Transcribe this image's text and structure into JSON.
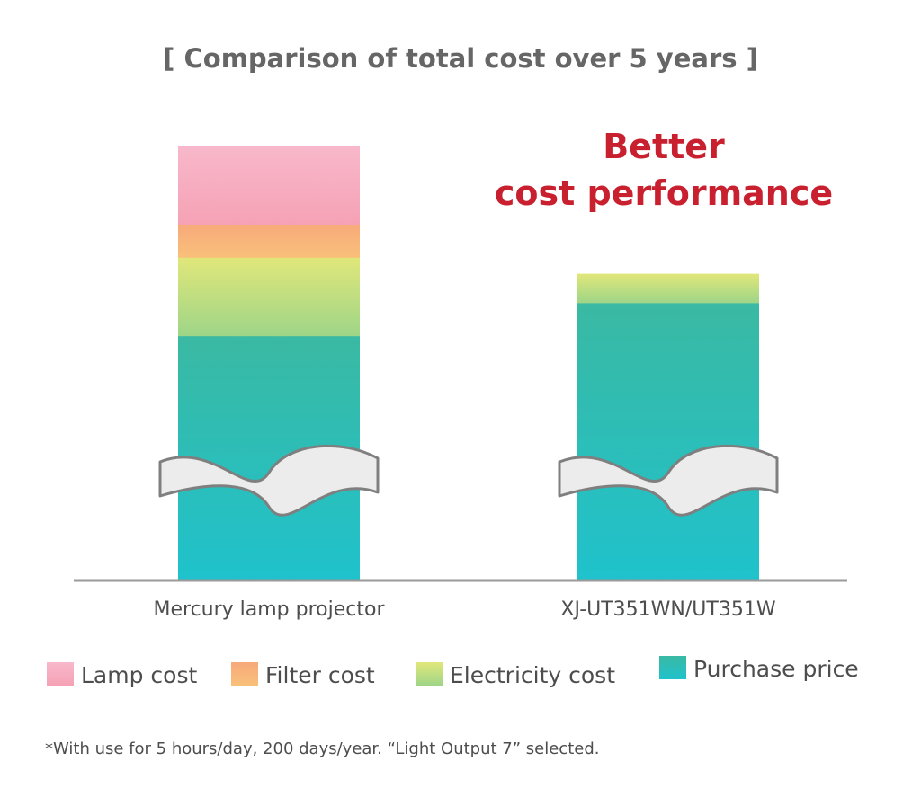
{
  "chart_data": {
    "type": "bar",
    "stacked": true,
    "title": "[ Comparison of total cost over 5 years ]",
    "annotation": [
      "Better",
      "cost performance"
    ],
    "categories": [
      "Mercury lamp projector",
      "XJ-UT351WN/UT351W"
    ],
    "axis_break": true,
    "y_axis_shown": false,
    "series": [
      {
        "name": "Purchase price",
        "values": [
          59,
          67
        ],
        "color": "#2ec4c8"
      },
      {
        "name": "Electricity cost",
        "values": [
          19,
          7
        ],
        "color": "#c8e26a"
      },
      {
        "name": "Filter cost",
        "values": [
          8,
          0
        ],
        "color": "#f9b87a"
      },
      {
        "name": "Lamp cost",
        "values": [
          19,
          0
        ],
        "color": "#f6a7bd"
      }
    ],
    "legend_order": [
      "Lamp cost",
      "Filter cost",
      "Electricity cost",
      "Purchase price"
    ],
    "legend_position": "bottom",
    "footnote": "*With use for 5 hours/day, 200 days/year.   “Light Output 7” selected.",
    "colors": {
      "axis": "#9a9a9a",
      "headline": "#c8202f",
      "title": "#666666"
    }
  }
}
